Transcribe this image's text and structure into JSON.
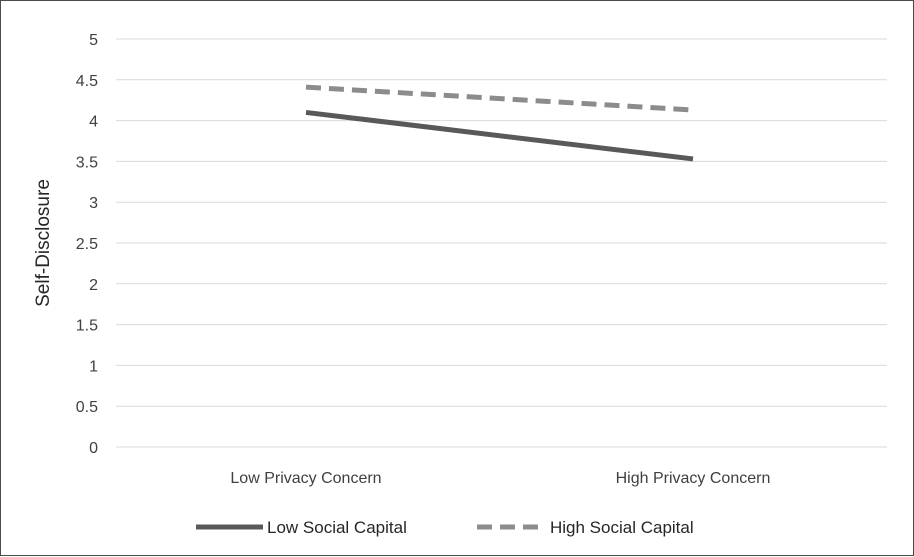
{
  "chart_data": {
    "type": "line",
    "categories": [
      "Low Privacy Concern",
      "High Privacy Concern"
    ],
    "series": [
      {
        "name": "Low Social Capital",
        "values": [
          4.1,
          3.53
        ],
        "color": "#595959",
        "style": "solid"
      },
      {
        "name": "High Social Capital",
        "values": [
          4.41,
          4.13
        ],
        "color": "#8c8c8c",
        "style": "dashed"
      }
    ],
    "title": "",
    "xlabel": "",
    "ylabel": "Self-Disclosure",
    "ylim": [
      0,
      5
    ],
    "yticks": [
      "0",
      "0.5",
      "1",
      "1.5",
      "2",
      "2.5",
      "3",
      "3.5",
      "4",
      "4.5",
      "5"
    ],
    "grid": true,
    "legend_position": "bottom"
  }
}
